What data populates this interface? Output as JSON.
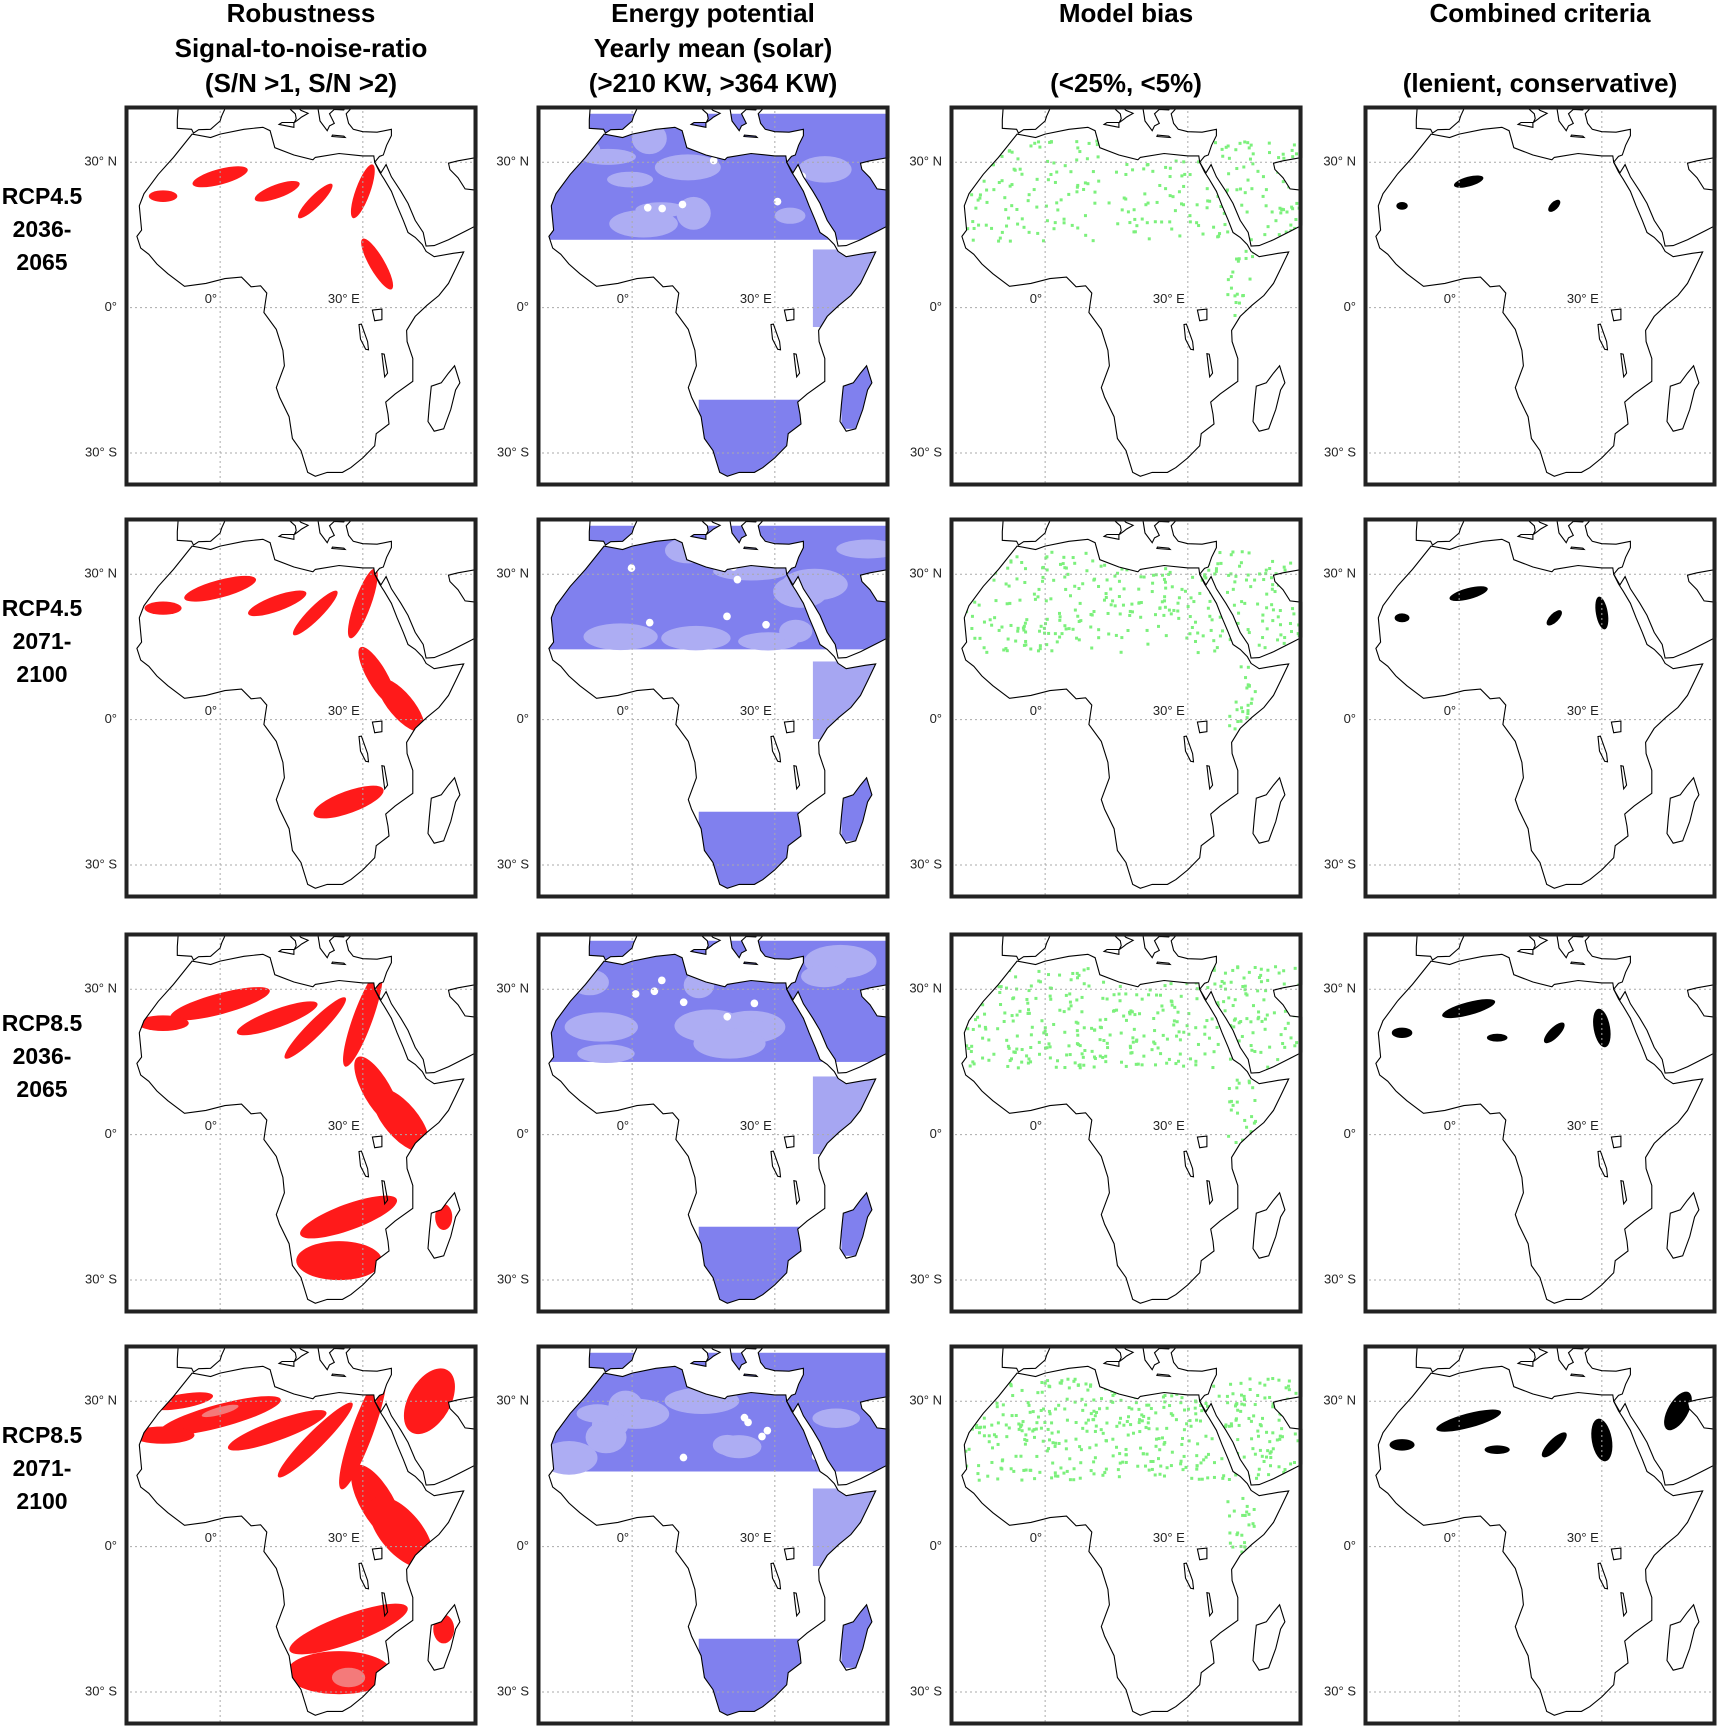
{
  "column_titles": [
    [
      "Robustness",
      "Signal-to-noise-ratio",
      "(S/N >1, S/N >2)"
    ],
    [
      "Energy potential",
      "Yearly mean (solar)",
      "(>210 KW, >364 KW)"
    ],
    [
      "Model bias",
      "(<25%, <5%)"
    ],
    [
      "Combined criteria",
      "(lenient, conservative)"
    ]
  ],
  "row_labels": [
    [
      "RCP4.5",
      "2036-",
      "2065"
    ],
    [
      "RCP4.5",
      "2071-",
      "2100"
    ],
    [
      "RCP8.5",
      "2036-",
      "2065"
    ],
    [
      "RCP8.5",
      "2071-",
      "2100"
    ]
  ],
  "latitude_labels": [
    "30° N",
    "0°",
    "30° S"
  ],
  "longitude_labels": [
    "0°",
    "30° E"
  ]
}
